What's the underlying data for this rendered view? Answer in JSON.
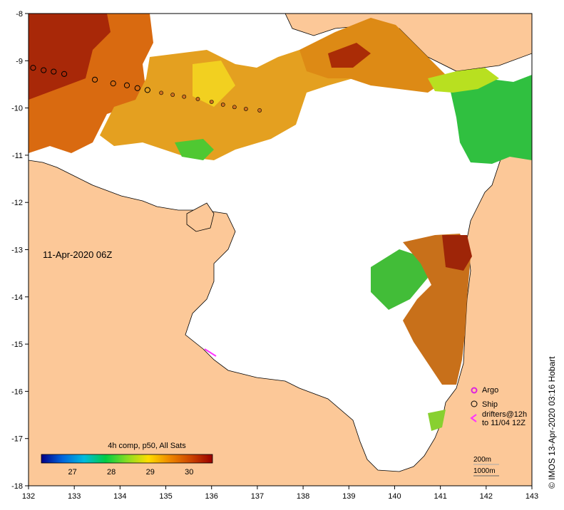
{
  "colors": {
    "land": "#fcc898",
    "no_data": "#ffffff",
    "coast": "#000000",
    "argo": "#dd22dd",
    "drifter": "#ff33ff",
    "colorbar_stops": [
      "#000088",
      "#0066dd",
      "#00bbdd",
      "#00cc44",
      "#88dd22",
      "#ffdd00",
      "#ee8800",
      "#cc4400",
      "#990000"
    ]
  },
  "map": {
    "lon_ticks": [
      "132",
      "133",
      "134",
      "135",
      "136",
      "137",
      "138",
      "139",
      "140",
      "141",
      "142",
      "143"
    ],
    "lat_ticks": [
      "-8",
      "-9",
      "-10",
      "-11",
      "-12",
      "-13",
      "-14",
      "-15",
      "-16",
      "-17",
      "-18"
    ],
    "lon_range": [
      132,
      143
    ],
    "lat_range": [
      -18,
      -8
    ]
  },
  "timestamp": "11-Apr-2020 06Z",
  "credit": "© IMOS 13-Apr-2020 03:16 Hobart",
  "colorbar": {
    "title": "4h comp, p50, All Sats",
    "ticks": [
      "27",
      "28",
      "29",
      "30"
    ],
    "range": [
      26.2,
      30.6
    ]
  },
  "legend": {
    "argo": "Argo",
    "ship": "Ship",
    "drifters_line1": "drifters@12h",
    "drifters_line2": "to 11/04 12Z"
  },
  "scale": {
    "contour1": "200m",
    "contour2": "1000m"
  },
  "ship_track": [
    {
      "lon": 132.1,
      "lat": -9.15
    },
    {
      "lon": 132.33,
      "lat": -9.2
    },
    {
      "lon": 132.55,
      "lat": -9.23
    },
    {
      "lon": 132.78,
      "lat": -9.28
    },
    {
      "lon": 133.45,
      "lat": -9.4
    },
    {
      "lon": 133.85,
      "lat": -9.48
    },
    {
      "lon": 134.15,
      "lat": -9.52
    },
    {
      "lon": 134.38,
      "lat": -9.58
    },
    {
      "lon": 134.6,
      "lat": -9.62
    },
    {
      "lon": 134.9,
      "lat": -9.68
    },
    {
      "lon": 135.15,
      "lat": -9.72
    },
    {
      "lon": 135.4,
      "lat": -9.76
    },
    {
      "lon": 135.7,
      "lat": -9.81
    },
    {
      "lon": 136.0,
      "lat": -9.87
    },
    {
      "lon": 136.25,
      "lat": -9.93
    },
    {
      "lon": 136.5,
      "lat": -9.98
    },
    {
      "lon": 136.75,
      "lat": -10.02
    },
    {
      "lon": 137.05,
      "lat": -10.05
    }
  ]
}
